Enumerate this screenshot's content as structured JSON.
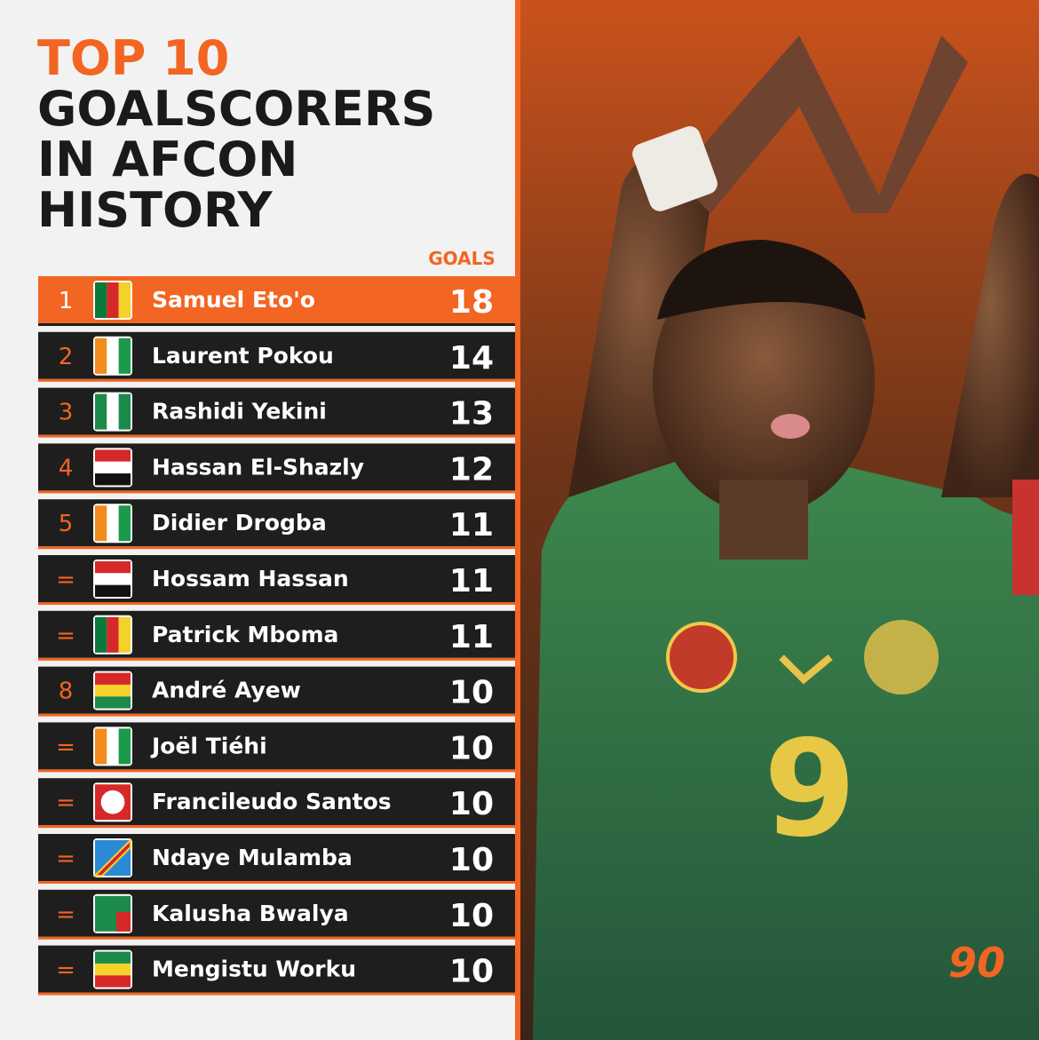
{
  "header": {
    "title_highlight": "TOP 10",
    "title_lines": [
      "GOALSCORERS",
      "IN AFCON",
      "HISTORY"
    ]
  },
  "table": {
    "column_header": "GOALS",
    "rows": [
      {
        "rank": "1",
        "name": "Samuel Eto'o",
        "goals": 18
      },
      {
        "rank": "2",
        "name": "Laurent Pokou",
        "goals": 14
      },
      {
        "rank": "3",
        "name": "Rashidi Yekini",
        "goals": 13
      },
      {
        "rank": "4",
        "name": "Hassan El-Shazly",
        "goals": 12
      },
      {
        "rank": "5",
        "name": "Didier Drogba",
        "goals": 11
      },
      {
        "rank": "=",
        "name": "Hossam Hassan",
        "goals": 11
      },
      {
        "rank": "=",
        "name": "Patrick Mboma",
        "goals": 11
      },
      {
        "rank": "8",
        "name": "André Ayew",
        "goals": 10
      },
      {
        "rank": "=",
        "name": "Joël Tiéhi",
        "goals": 10
      },
      {
        "rank": "=",
        "name": "Francileudo Santos",
        "goals": 10
      },
      {
        "rank": "=",
        "name": "Ndaye Mulamba",
        "goals": 10
      },
      {
        "rank": "=",
        "name": "Kalusha Bwalya",
        "goals": 10
      },
      {
        "rank": "=",
        "name": "Mengistu Worku",
        "goals": 10
      }
    ]
  },
  "photo": {
    "jersey_number": "9"
  },
  "logo": "90"
}
